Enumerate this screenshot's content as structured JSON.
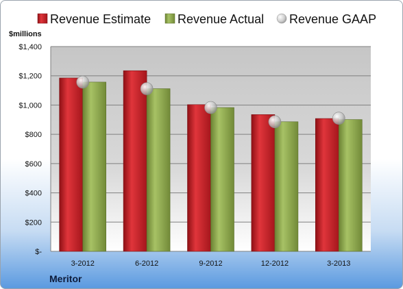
{
  "chart_data": {
    "type": "bar",
    "categories": [
      "3-2012",
      "6-2012",
      "9-2012",
      "12-2012",
      "3-2013"
    ],
    "series": [
      {
        "name": "Revenue Estimate",
        "values": [
          1185,
          1235,
          1003,
          935,
          908
        ],
        "color": "#cc2229",
        "marker": "bar"
      },
      {
        "name": "Revenue Actual",
        "values": [
          1157,
          1112,
          983,
          886,
          901
        ],
        "color": "#8faa4e",
        "marker": "bar"
      },
      {
        "name": "Revenue GAAP",
        "values": [
          1157,
          1112,
          983,
          886,
          910
        ],
        "color": "#b4b4b4",
        "marker": "circle"
      }
    ],
    "ylabel": "$millions",
    "ylim": [
      0,
      1400
    ],
    "yticks": [
      0,
      200,
      400,
      600,
      800,
      1000,
      1200,
      1400
    ],
    "ytick_labels": [
      "$-",
      "$200",
      "$400",
      "$600",
      "$800",
      "$1,000",
      "$1,200",
      "$1,400"
    ],
    "grid": true,
    "legend_position": "top"
  },
  "footer": {
    "company": "Meritor"
  }
}
